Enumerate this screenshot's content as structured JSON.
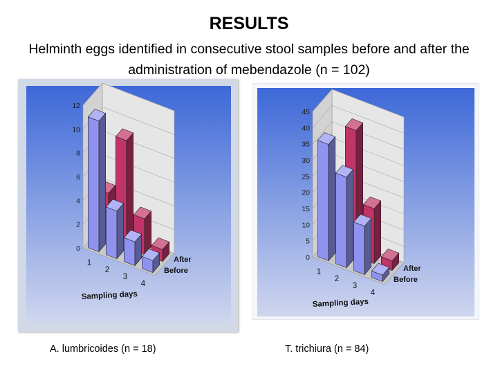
{
  "title": "RESULTS",
  "subtitle": "Helminth eggs identified in consecutive stool samples before and after the administration of mebendazole (n = 102)",
  "captions": {
    "a": "A. lumbricoides (n = 18)",
    "b": "T. trichiura (n = 84)"
  },
  "colors": {
    "before": "#8f93ef",
    "after": "#c03467",
    "bg_top": "#3d68d8",
    "bg_bottom": "#cfd6ee"
  },
  "chart_data": [
    {
      "type": "bar",
      "categories": [
        "1",
        "2",
        "3",
        "4"
      ],
      "xlabel": "Sampling days",
      "ylabel": "",
      "ylim": [
        0,
        12
      ],
      "yticks": [
        "0",
        "2",
        "4",
        "6",
        "8",
        "10",
        "12"
      ],
      "series": [
        {
          "name": "Before",
          "values": [
            11,
            4,
            2,
            1
          ]
        },
        {
          "name": "After",
          "values": [
            4,
            9,
            3,
            1
          ]
        }
      ]
    },
    {
      "type": "bar",
      "categories": [
        "1",
        "2",
        "3",
        "4"
      ],
      "xlabel": "Sampling days",
      "ylabel": "",
      "ylim": [
        0,
        45
      ],
      "yticks": [
        "0",
        "5",
        "10",
        "15",
        "20",
        "25",
        "30",
        "35",
        "40",
        "45"
      ],
      "series": [
        {
          "name": "Before",
          "values": [
            36,
            28,
            15,
            2
          ]
        },
        {
          "name": "After",
          "values": [
            14,
            39,
            17,
            3
          ]
        }
      ]
    }
  ]
}
